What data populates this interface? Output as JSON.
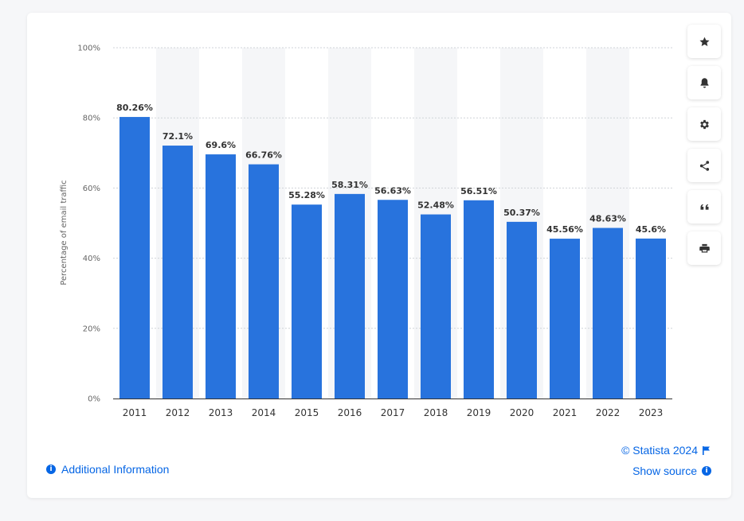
{
  "chart_data": {
    "type": "bar",
    "categories": [
      "2011",
      "2012",
      "2013",
      "2014",
      "2015",
      "2016",
      "2017",
      "2018",
      "2019",
      "2020",
      "2021",
      "2022",
      "2023"
    ],
    "values": [
      80.26,
      72.1,
      69.6,
      66.76,
      55.28,
      58.31,
      56.63,
      52.48,
      56.51,
      50.37,
      45.56,
      48.63,
      45.6
    ],
    "data_labels": [
      "80.26%",
      "72.1%",
      "69.6%",
      "66.76%",
      "55.28%",
      "58.31%",
      "56.63%",
      "52.48%",
      "56.51%",
      "50.37%",
      "45.56%",
      "48.63%",
      "45.6%"
    ],
    "ylabel": "Percentage of email traffic",
    "xlabel": "",
    "ylim": [
      0,
      100
    ],
    "yticks": [
      0,
      20,
      40,
      60,
      80,
      100
    ],
    "ytick_labels": [
      "0%",
      "20%",
      "40%",
      "60%",
      "80%",
      "100%"
    ],
    "grid": true,
    "bar_color": "#2873dd"
  },
  "toolbar": {
    "icons": [
      "star-icon",
      "bell-icon",
      "gear-icon",
      "share-icon",
      "quote-icon",
      "print-icon"
    ]
  },
  "footer": {
    "additional_information": "Additional Information",
    "copyright": "© Statista 2024",
    "show_source": "Show source",
    "info_glyph": "i"
  },
  "link_color": "#0666e5"
}
